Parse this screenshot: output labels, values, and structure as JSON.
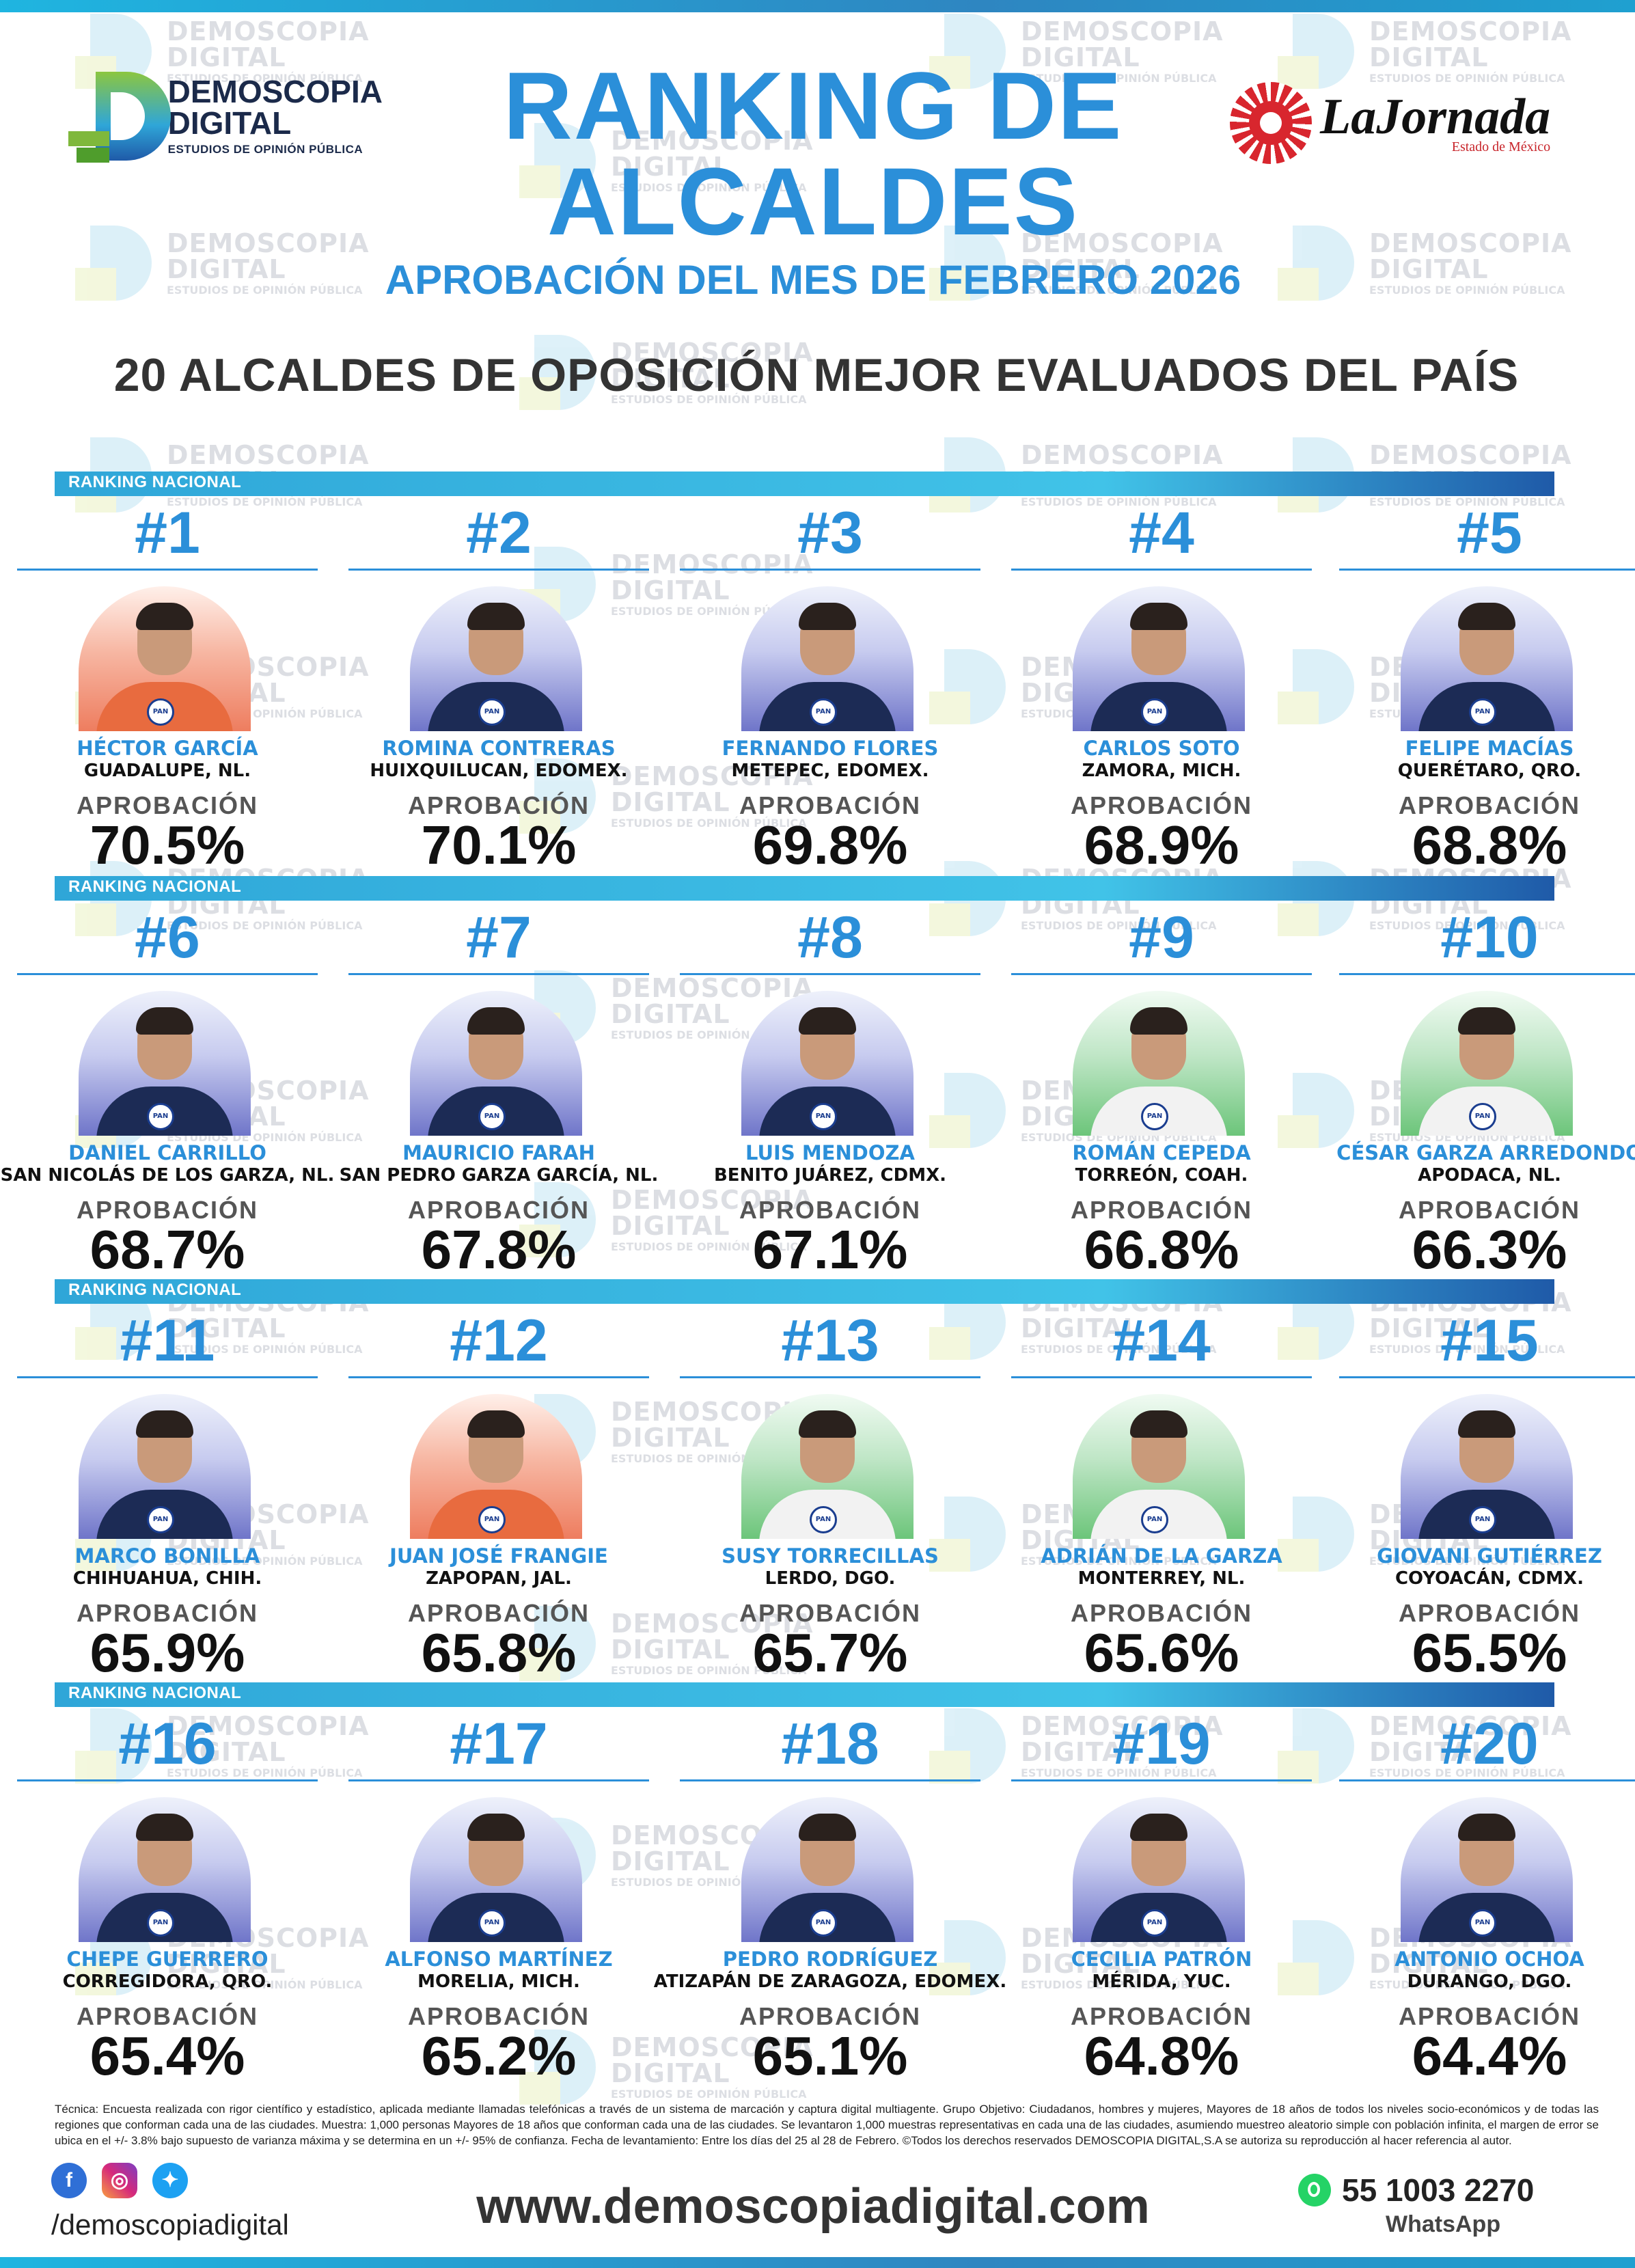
{
  "header": {
    "brand_line1": "DEMOSCOPIA",
    "brand_line2": "DIGITAL",
    "brand_line3": "ESTUDIOS DE OPINIÓN PÚBLICA",
    "title_line1": "RANKING DE",
    "title_line2": "ALCALDES",
    "subtitle": "APROBACIÓN DEL MES DE FEBRERO 2026",
    "headline": "20 ALCALDES DE OPOSICIÓN MEJOR EVALUADOS DEL PAÍS",
    "partner_name": "LaJornada",
    "partner_sub": "Estado de México"
  },
  "watermark": {
    "line1": "DEMOSCOPIA",
    "line2": "DIGITAL",
    "line3": "ESTUDIOS DE OPINIÓN PÚBLICA"
  },
  "section_label": "RANKING NACIONAL",
  "approval_label": "APROBACIÓN",
  "rows": [
    {
      "label": "RANKING NACIONAL",
      "mayors": [
        {
          "rank": "#1",
          "name": "HÉCTOR GARCÍA",
          "city": "GUADALUPE, NL.",
          "approval": "70.5%",
          "bg": "red"
        },
        {
          "rank": "#2",
          "name": "ROMINA CONTRERAS",
          "city": "HUIXQUILUCAN, EDOMEX.",
          "approval": "70.1%",
          "bg": "blue"
        },
        {
          "rank": "#3",
          "name": "FERNANDO FLORES",
          "city": "METEPEC, EDOMEX.",
          "approval": "69.8%",
          "bg": "blue"
        },
        {
          "rank": "#4",
          "name": "CARLOS SOTO",
          "city": "ZAMORA, MICH.",
          "approval": "68.9%",
          "bg": "blue"
        },
        {
          "rank": "#5",
          "name": "FELIPE MACÍAS",
          "city": "QUERÉTARO, QRO.",
          "approval": "68.8%",
          "bg": "blue"
        }
      ]
    },
    {
      "label": "RANKING NACIONAL",
      "mayors": [
        {
          "rank": "#6",
          "name": "DANIEL CARRILLO",
          "city": "SAN NICOLÁS DE LOS GARZA, NL.",
          "approval": "68.7%",
          "bg": "blue"
        },
        {
          "rank": "#7",
          "name": "MAURICIO FARAH",
          "city": "SAN PEDRO GARZA GARCÍA, NL.",
          "approval": "67.8%",
          "bg": "blue"
        },
        {
          "rank": "#8",
          "name": "LUIS MENDOZA",
          "city": "BENITO JUÁREZ, CDMX.",
          "approval": "67.1%",
          "bg": "blue"
        },
        {
          "rank": "#9",
          "name": "ROMÁN CEPEDA",
          "city": "TORREÓN, COAH.",
          "approval": "66.8%",
          "bg": "green"
        },
        {
          "rank": "#10",
          "name": "CÉSAR GARZA ARREDONDO",
          "city": "APODACA, NL.",
          "approval": "66.3%",
          "bg": "green"
        }
      ]
    },
    {
      "label": "RANKING NACIONAL",
      "mayors": [
        {
          "rank": "#11",
          "name": "MARCO BONILLA",
          "city": "CHIHUAHUA, CHIH.",
          "approval": "65.9%",
          "bg": "blue"
        },
        {
          "rank": "#12",
          "name": "JUAN JOSÉ FRANGIE",
          "city": "ZAPOPAN, JAL.",
          "approval": "65.8%",
          "bg": "red"
        },
        {
          "rank": "#13",
          "name": "SUSY TORRECILLAS",
          "city": "LERDO, DGO.",
          "approval": "65.7%",
          "bg": "green"
        },
        {
          "rank": "#14",
          "name": "ADRIÁN DE LA GARZA",
          "city": "MONTERREY, NL.",
          "approval": "65.6%",
          "bg": "green"
        },
        {
          "rank": "#15",
          "name": "GIOVANI GUTIÉRREZ",
          "city": "COYOACÁN, CDMX.",
          "approval": "65.5%",
          "bg": "blue"
        }
      ]
    },
    {
      "label": "RANKING NACIONAL",
      "mayors": [
        {
          "rank": "#16",
          "name": "CHEPE GUERRERO",
          "city": "CORREGIDORA, QRO.",
          "approval": "65.4%",
          "bg": "blue"
        },
        {
          "rank": "#17",
          "name": "ALFONSO MARTÍNEZ",
          "city": "MORELIA, MICH.",
          "approval": "65.2%",
          "bg": "blue"
        },
        {
          "rank": "#18",
          "name": "PEDRO RODRÍGUEZ",
          "city": "ATIZAPÁN DE ZARAGOZA, EDOMEX.",
          "approval": "65.1%",
          "bg": "blue"
        },
        {
          "rank": "#19",
          "name": "CECILIA PATRÓN",
          "city": "MÉRIDA, YUC.",
          "approval": "64.8%",
          "bg": "blue"
        },
        {
          "rank": "#20",
          "name": "ANTONIO OCHOA",
          "city": "DURANGO, DGO.",
          "approval": "64.4%",
          "bg": "blue"
        }
      ]
    }
  ],
  "footer": {
    "technical_note": "Técnica: Encuesta realizada con rigor científico y estadístico, aplicada mediante llamadas telefónicas a través de un sistema de marcación y captura digital multiagente. Grupo Objetivo: Ciudadanos, hombres y mujeres, Mayores de 18 años de todos los niveles socio-económicos y de todas las regiones que conforman cada una de las ciudades. Muestra: 1,000 personas Mayores de 18 años que conforman cada una de las ciudades. Se levantaron 1,000 muestras representativas en cada una de las ciudades, asumiendo muestreo aleatorio simple con población infinita, el margen de error se ubica en el +/- 3.8% bajo supuesto de varianza máxima y se determina en un +/- 95% de confianza. Fecha de levantamiento: Entre los días del 25 al 28 de Febrero. ©Todos los derechos reservados DEMOSCOPIA DIGITAL,S.A se autoriza su reproducción al hacer referencia al autor.",
    "handle": "/demoscopiadigital",
    "website": "www.demoscopiadigital.com",
    "whatsapp_number": "55 1003 2270",
    "whatsapp_label": "WhatsApp",
    "icons": [
      "facebook-icon",
      "instagram-icon",
      "twitter-icon",
      "whatsapp-icon"
    ]
  },
  "colors": {
    "accent": "#2b8fd9",
    "bar_start": "#2fa6d8",
    "bar_end": "#1f5aa8",
    "text_dark": "#111111"
  }
}
